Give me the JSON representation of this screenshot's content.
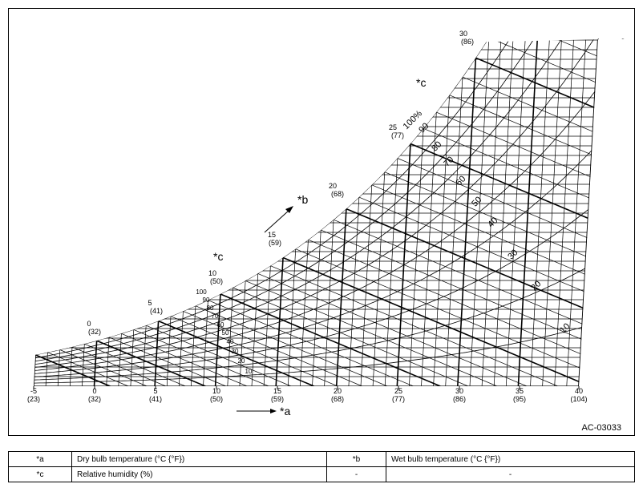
{
  "diagram": {
    "axis_labels": [
      {
        "c": "-5",
        "f": "(23)"
      },
      {
        "c": "0",
        "f": "(32)"
      },
      {
        "c": "5",
        "f": "(41)"
      },
      {
        "c": "10",
        "f": "(50)"
      },
      {
        "c": "15",
        "f": "(59)"
      },
      {
        "c": "20",
        "f": "(68)"
      },
      {
        "c": "25",
        "f": "(77)"
      },
      {
        "c": "30",
        "f": "(86)"
      },
      {
        "c": "35",
        "f": "(95)"
      },
      {
        "c": "40",
        "f": "(104)"
      }
    ],
    "saturation_labels": [
      {
        "c": "0",
        "f": "(32)"
      },
      {
        "c": "5",
        "f": "(41)"
      },
      {
        "c": "10",
        "f": "(50)"
      },
      {
        "c": "15",
        "f": "(59)"
      },
      {
        "c": "20",
        "f": "(68)"
      },
      {
        "c": "25",
        "f": "(77)"
      },
      {
        "c": "30",
        "f": "(86)"
      }
    ],
    "rh_small": [
      "100",
      "90",
      "80",
      "70",
      "60",
      "50",
      "40",
      "30",
      "20",
      "10"
    ],
    "rh_large": [
      "100%",
      "90",
      "80",
      "70",
      "60",
      "50",
      "40",
      "30",
      "20",
      "10"
    ],
    "markers": {
      "a": "*a",
      "b": "*b",
      "c1": "*c",
      "c2": "*c"
    },
    "figure_id": "AC-03033"
  },
  "table": {
    "rows": [
      [
        "*a",
        "Dry bulb temperature (°C {°F})",
        "*b",
        "Wet bulb temperature (°C {°F})"
      ],
      [
        "*c",
        "Relative humidity (%)",
        "-",
        "-"
      ]
    ]
  }
}
